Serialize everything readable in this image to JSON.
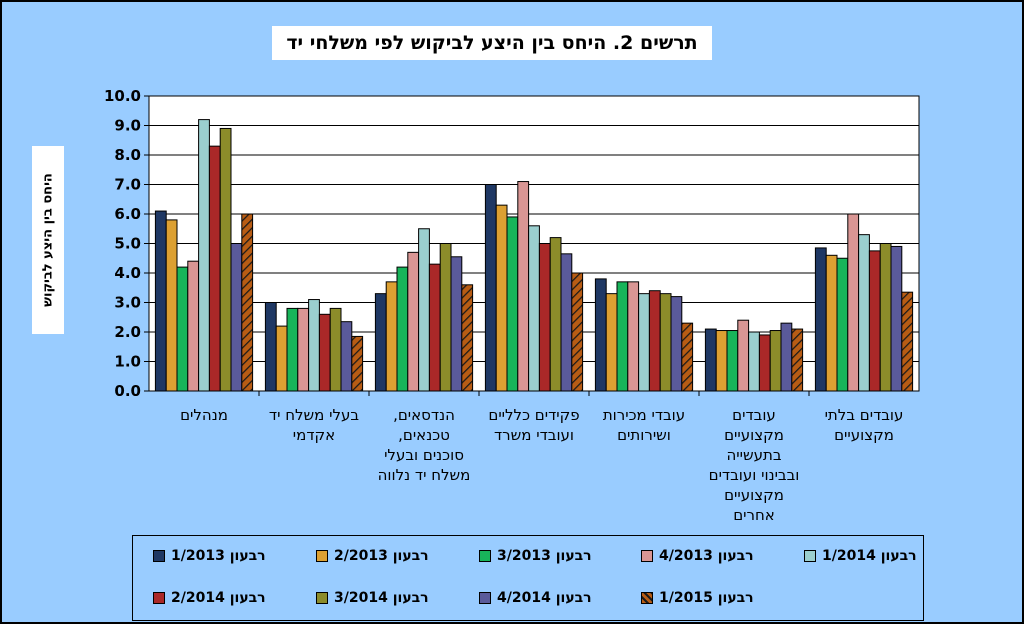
{
  "chart_data": {
    "type": "bar",
    "title": "תרשים 2. היחס בין היצע לביקוש לפי משלחי יד",
    "ylabel": "היחס בין היצע לביקוש",
    "ylim": [
      0,
      10
    ],
    "yticks": [
      "0.0",
      "1.0",
      "2.0",
      "3.0",
      "4.0",
      "5.0",
      "6.0",
      "7.0",
      "8.0",
      "9.0",
      "10.0"
    ],
    "grid": true,
    "legend_position": "bottom",
    "categories": [
      [
        "מנהלים"
      ],
      [
        "בעלי משלח יד",
        "אקדמי"
      ],
      [
        "הנדסאים,",
        "טכנאים,",
        "סוכנים ובעלי",
        "משלח יד נלווה"
      ],
      [
        "פקידים כלליים",
        "ועובדי משרד"
      ],
      [
        "עובדי מכירות",
        "ושירותים"
      ],
      [
        "עובדים",
        "מקצועיים",
        "בתעשייה",
        "ובבינוי ועובדים",
        "מקצועיים",
        "אחרים"
      ],
      [
        "עובדים בלתי",
        "מקצועיים"
      ]
    ],
    "series": [
      {
        "name": "רבעון 1/2013",
        "color": "#1f3864",
        "values": [
          6.1,
          3.0,
          3.3,
          7.0,
          3.8,
          2.1,
          4.85
        ]
      },
      {
        "name": "רבעון 2/2013",
        "color": "#dca032",
        "values": [
          5.8,
          2.2,
          3.7,
          6.3,
          3.3,
          2.05,
          4.6
        ]
      },
      {
        "name": "רבעון 3/2013",
        "color": "#18b45a",
        "values": [
          4.2,
          2.8,
          4.2,
          5.9,
          3.7,
          2.05,
          4.5
        ]
      },
      {
        "name": "רבעון 4/2013",
        "color": "#d99694",
        "values": [
          4.4,
          2.8,
          4.7,
          7.1,
          3.7,
          2.4,
          6.0
        ]
      },
      {
        "name": "רבעון 1/2014",
        "color": "#9bcfcf",
        "values": [
          9.2,
          3.1,
          5.5,
          5.6,
          3.3,
          2.0,
          5.3
        ]
      },
      {
        "name": "רבעון 2/2014",
        "color": "#aa2828",
        "values": [
          8.3,
          2.6,
          4.3,
          5.0,
          3.4,
          1.9,
          4.75
        ]
      },
      {
        "name": "רבעון 3/2014",
        "color": "#8c8c2a",
        "values": [
          8.9,
          2.8,
          5.0,
          5.2,
          3.3,
          2.05,
          5.0
        ]
      },
      {
        "name": "רבעון 4/2014",
        "color": "#5a5a9a",
        "values": [
          5.0,
          2.35,
          4.55,
          4.65,
          3.2,
          2.3,
          4.9
        ]
      },
      {
        "name": "רבעון 1/2015",
        "color": "#b85c14",
        "pattern": "hatch",
        "values": [
          6.0,
          1.85,
          3.6,
          4.0,
          2.3,
          2.1,
          3.35
        ]
      }
    ]
  }
}
